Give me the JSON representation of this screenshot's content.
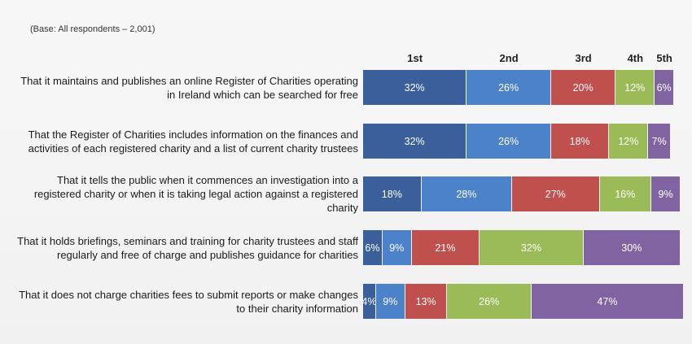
{
  "base_note": "(Base: All respondents – 2,001)",
  "chart_data": {
    "type": "bar",
    "orientation": "horizontal",
    "stacked": true,
    "series": [
      {
        "name": "1st",
        "color": "#3a5f9a",
        "values": [
          32,
          32,
          18,
          6,
          4
        ]
      },
      {
        "name": "2nd",
        "color": "#4c82c9",
        "values": [
          26,
          26,
          28,
          9,
          9
        ]
      },
      {
        "name": "3rd",
        "color": "#c0504d",
        "values": [
          20,
          18,
          27,
          21,
          13
        ]
      },
      {
        "name": "4th",
        "color": "#9bbb59",
        "values": [
          12,
          12,
          16,
          32,
          26
        ]
      },
      {
        "name": "5th",
        "color": "#8064a2",
        "values": [
          6,
          7,
          9,
          30,
          47
        ]
      }
    ],
    "categories": [
      [
        "That it maintains and publishes an online Register of Charities operating",
        "in Ireland which can be searched for free"
      ],
      [
        "That the Register of Charities includes information on the finances and",
        "activities of each registered charity and a list of current charity trustees"
      ],
      [
        "That it tells the public when it commences an investigation into a",
        "registered charity or when it is taking legal action against a registered",
        "charity"
      ],
      [
        "That it holds briefings, seminars and training for charity trustees and staff",
        "regularly and free of charge and publishes guidance for charities"
      ],
      [
        "That it does not charge charities fees to submit reports or make changes",
        "to their charity information"
      ]
    ],
    "value_suffix": "%",
    "xlim": [
      0,
      100
    ],
    "legend": "column headers above first bar",
    "grid": false
  }
}
